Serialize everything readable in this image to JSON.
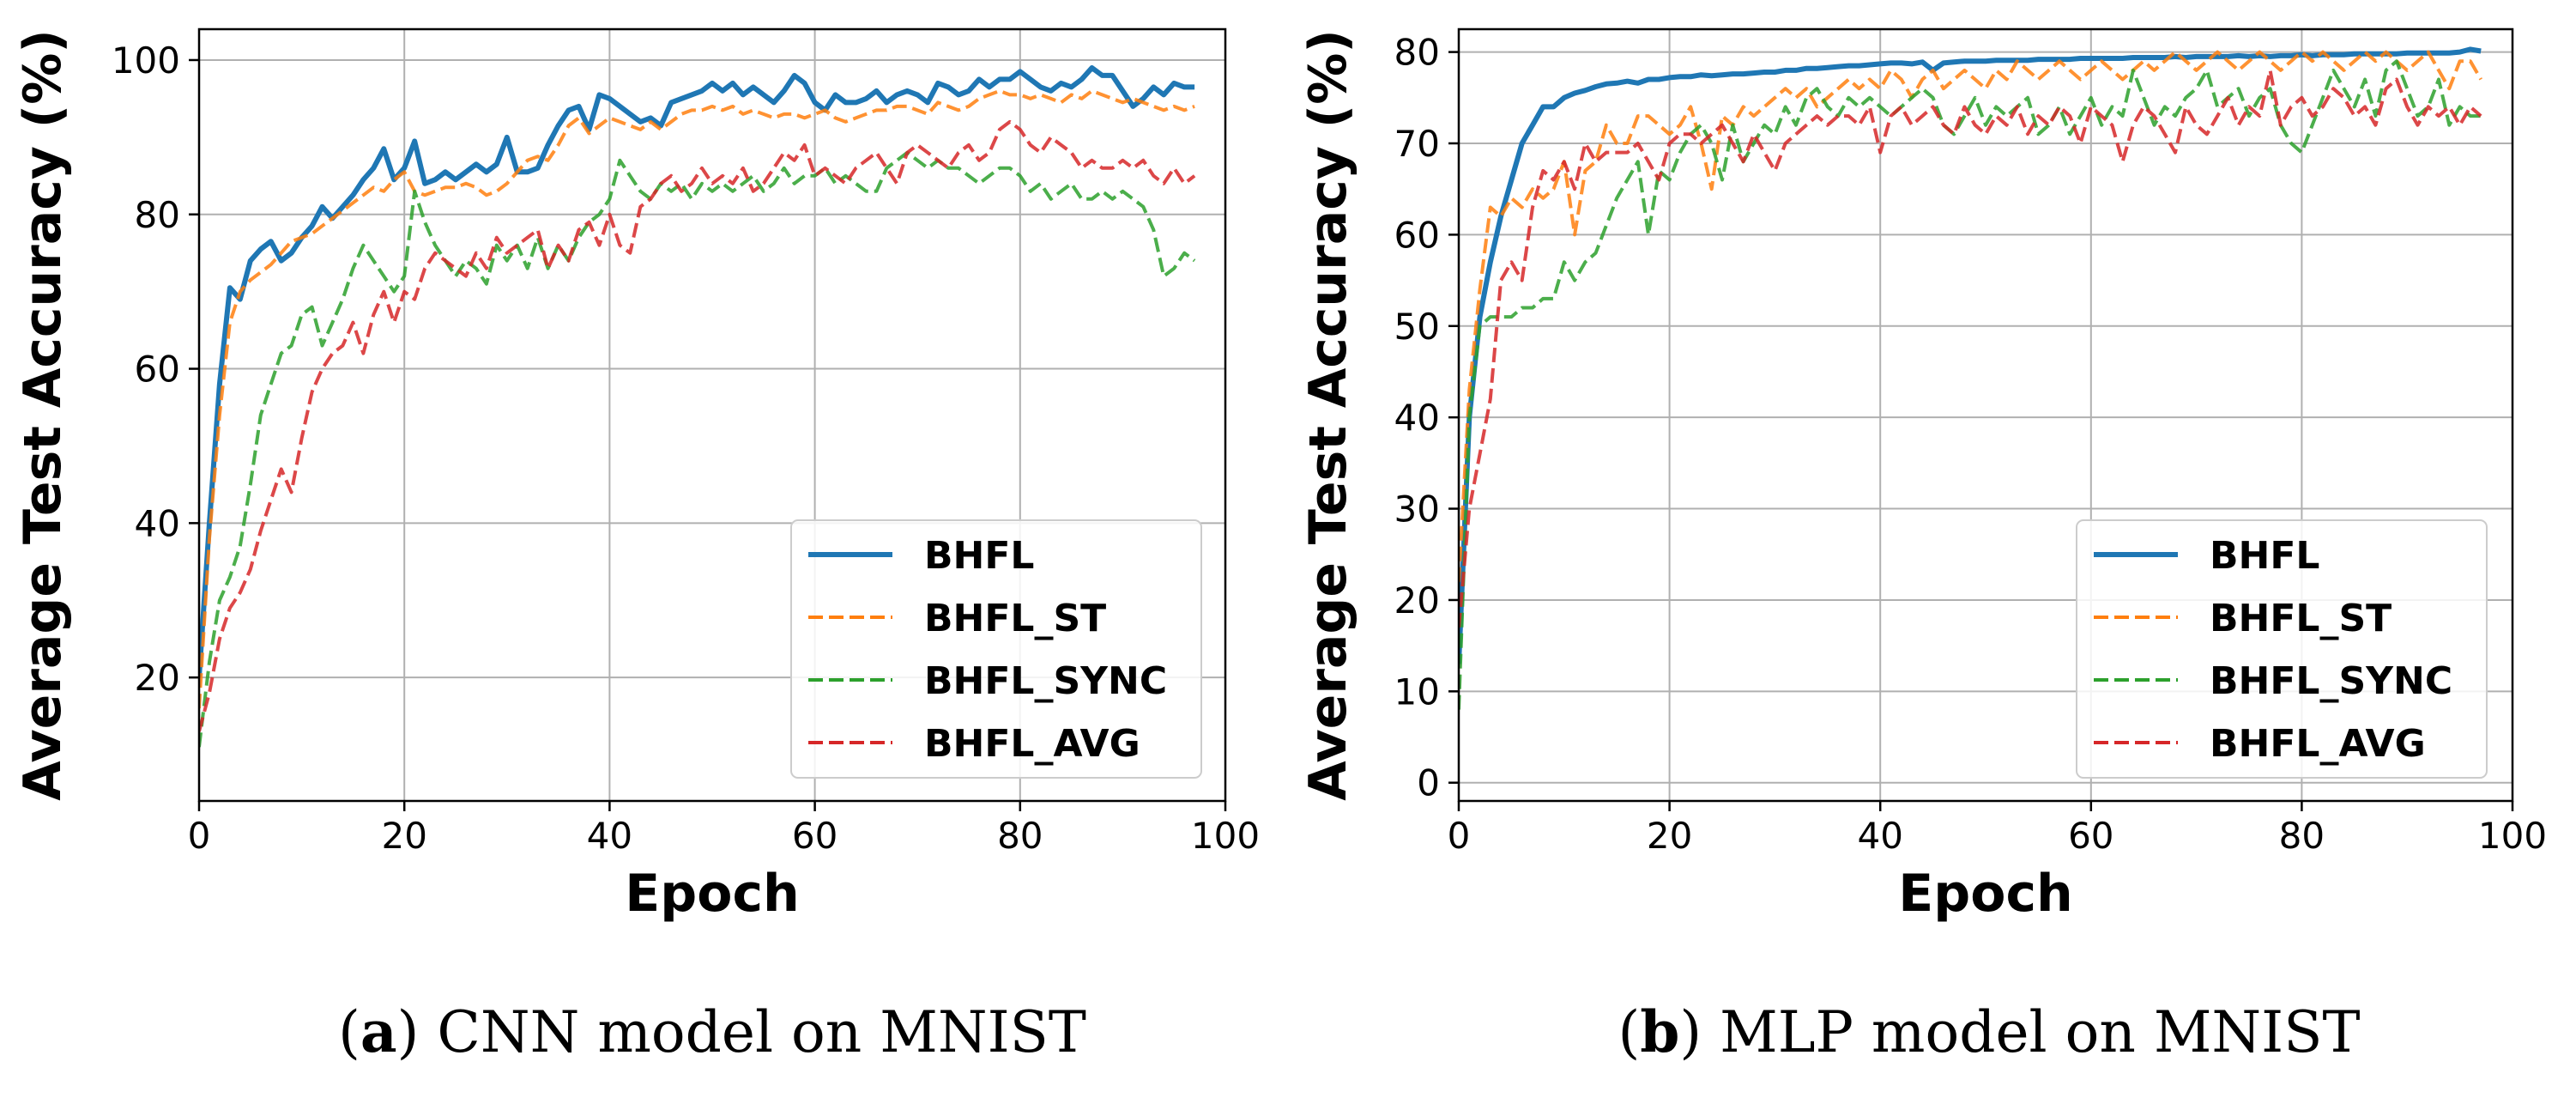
{
  "colors": {
    "BHFL": "#1f77b4",
    "BHFL_ST": "#ff7f0e",
    "BHFL_SYNC": "#2ca02c",
    "BHFL_AVG": "#d62728"
  },
  "chart_data": [
    {
      "type": "line",
      "caption": {
        "letter": "a",
        "text": "CNN model on MNIST"
      },
      "xlabel": "Epoch",
      "ylabel": "Average Test Accuracy (%)",
      "xlim": [
        0,
        100
      ],
      "ylim": [
        4,
        104
      ],
      "xticks": [
        0,
        20,
        40,
        60,
        80,
        100
      ],
      "yticks": [
        20,
        40,
        60,
        80,
        100
      ],
      "grid": true,
      "legend_position": "lower-right",
      "x": [
        0,
        1,
        2,
        3,
        4,
        5,
        6,
        7,
        8,
        9,
        10,
        11,
        12,
        13,
        14,
        15,
        16,
        17,
        18,
        19,
        20,
        21,
        22,
        23,
        24,
        25,
        26,
        27,
        28,
        29,
        30,
        31,
        32,
        33,
        34,
        35,
        36,
        37,
        38,
        39,
        40,
        41,
        42,
        43,
        44,
        45,
        46,
        47,
        48,
        49,
        50,
        51,
        52,
        53,
        54,
        55,
        56,
        57,
        58,
        59,
        60,
        61,
        62,
        63,
        64,
        65,
        66,
        67,
        68,
        69,
        70,
        71,
        72,
        73,
        74,
        75,
        76,
        77,
        78,
        79,
        80,
        81,
        82,
        83,
        84,
        85,
        86,
        87,
        88,
        89,
        90,
        91,
        92,
        93,
        94,
        95,
        96,
        97
      ],
      "series": [
        {
          "name": "BHFL",
          "style": "solid",
          "values": [
            20,
            40,
            58,
            70.5,
            69,
            74,
            75.5,
            76.5,
            74,
            75,
            77,
            78.5,
            81,
            79.5,
            81,
            82.5,
            84.5,
            86,
            88.5,
            84.5,
            86,
            89.5,
            84,
            84.5,
            85.5,
            84.5,
            85.5,
            86.5,
            85.5,
            86.5,
            90,
            85.5,
            85.5,
            86,
            89,
            91.5,
            93.5,
            94,
            91,
            95.5,
            95,
            94,
            93,
            92,
            92.5,
            91.5,
            94.5,
            95,
            95.5,
            96,
            97,
            96,
            97,
            95.5,
            96.5,
            95.5,
            94.5,
            96,
            98,
            97,
            94.5,
            93.5,
            95.5,
            94.5,
            94.5,
            95,
            96,
            94.5,
            95.5,
            96,
            95.5,
            94.5,
            97,
            96.5,
            95.5,
            96,
            97.5,
            96.5,
            97.5,
            97.5,
            98.5,
            97.5,
            96.5,
            96,
            97,
            96.5,
            97.5,
            99,
            98,
            98,
            96,
            94,
            95,
            96.5,
            95.5,
            97,
            96.5,
            96.5
          ]
        },
        {
          "name": "BHFL_ST",
          "style": "dashed",
          "values": [
            16,
            38,
            54,
            66,
            70,
            71.5,
            72.5,
            73.5,
            75,
            76.5,
            77,
            77.5,
            78.5,
            79.5,
            80.5,
            81.5,
            82.5,
            83.5,
            83,
            84.5,
            85.5,
            83,
            82.5,
            83,
            83.5,
            83.5,
            84,
            83.5,
            82.5,
            83,
            84,
            85.5,
            87,
            87.5,
            87,
            89,
            91.5,
            92.5,
            90.5,
            91.5,
            92.5,
            92,
            91.5,
            91,
            92,
            91,
            92,
            93,
            93.5,
            93.5,
            94,
            93.5,
            94,
            93,
            93.5,
            93,
            92.5,
            93,
            93,
            92.5,
            93,
            93.5,
            92.5,
            92,
            92.5,
            93,
            93.5,
            93.5,
            94,
            94,
            93.5,
            93,
            94.5,
            94,
            93.5,
            94,
            95,
            95.5,
            96,
            95.5,
            95.5,
            95,
            95.5,
            95,
            94.5,
            95.5,
            95,
            96,
            95.5,
            95,
            94.5,
            95,
            94.5,
            94,
            93.5,
            94,
            93.5,
            94
          ]
        },
        {
          "name": "BHFL_SYNC",
          "style": "dashed",
          "values": [
            11,
            22,
            30,
            33,
            37,
            45,
            54,
            58,
            62,
            63,
            67,
            68,
            63,
            66,
            69,
            73,
            76,
            74,
            72,
            70,
            72,
            83,
            79,
            76,
            74,
            72,
            74,
            73,
            71,
            76,
            74,
            76,
            73,
            77,
            73,
            76,
            74,
            77,
            79,
            80,
            82,
            87,
            85,
            83,
            82,
            84,
            83,
            84,
            82,
            84,
            83,
            84,
            83,
            84,
            85,
            83,
            84,
            86,
            84,
            85,
            85,
            86,
            84,
            85,
            84,
            83,
            83,
            86,
            87,
            88,
            87,
            86,
            87,
            86,
            86,
            85,
            84,
            85,
            86,
            86,
            85,
            83,
            84,
            82,
            83,
            84,
            82,
            82,
            83,
            82,
            83,
            82,
            81,
            78,
            72,
            73,
            75,
            74
          ]
        },
        {
          "name": "BHFL_AVG",
          "style": "dashed",
          "values": [
            13,
            18,
            25,
            29,
            31,
            34,
            39,
            43,
            47,
            44,
            51,
            57,
            60,
            62,
            63,
            66,
            62,
            67,
            70,
            66,
            70,
            69,
            73,
            75,
            74,
            73,
            72,
            75,
            73,
            77,
            75,
            76,
            77,
            78,
            73,
            76,
            74,
            78,
            79,
            76,
            80,
            76,
            75,
            81,
            82,
            84,
            85,
            83,
            84,
            86,
            84,
            85,
            84,
            86,
            83,
            84,
            86,
            88,
            87,
            89,
            85,
            86,
            85,
            84,
            86,
            87,
            88,
            86,
            84,
            88,
            89,
            88,
            87,
            86,
            88,
            89,
            87,
            88,
            91,
            92,
            91,
            89,
            88,
            90,
            89,
            88,
            86,
            87,
            86,
            86,
            87,
            86,
            87,
            85,
            84,
            86,
            84,
            85
          ]
        }
      ]
    },
    {
      "type": "line",
      "caption": {
        "letter": "b",
        "text": "MLP model on MNIST"
      },
      "xlabel": "Epoch",
      "ylabel": "Average Test Accuracy (%)",
      "xlim": [
        0,
        100
      ],
      "ylim": [
        -2,
        82.5
      ],
      "xticks": [
        0,
        20,
        40,
        60,
        80,
        100
      ],
      "yticks": [
        0,
        10,
        20,
        30,
        40,
        50,
        60,
        70,
        80
      ],
      "grid": true,
      "legend_position": "lower-right",
      "x": [
        0,
        1,
        2,
        3,
        4,
        5,
        6,
        7,
        8,
        9,
        10,
        11,
        12,
        13,
        14,
        15,
        16,
        17,
        18,
        19,
        20,
        21,
        22,
        23,
        24,
        25,
        26,
        27,
        28,
        29,
        30,
        31,
        32,
        33,
        34,
        35,
        36,
        37,
        38,
        39,
        40,
        41,
        42,
        43,
        44,
        45,
        46,
        47,
        48,
        49,
        50,
        51,
        52,
        53,
        54,
        55,
        56,
        57,
        58,
        59,
        60,
        61,
        62,
        63,
        64,
        65,
        66,
        67,
        68,
        69,
        70,
        71,
        72,
        73,
        74,
        75,
        76,
        77,
        78,
        79,
        80,
        81,
        82,
        83,
        84,
        85,
        86,
        87,
        88,
        89,
        90,
        91,
        92,
        93,
        94,
        95,
        96,
        97
      ],
      "series": [
        {
          "name": "BHFL",
          "style": "solid",
          "values": [
            13,
            40,
            51,
            57,
            62,
            66,
            70,
            72,
            74,
            74,
            75,
            75.5,
            75.8,
            76.2,
            76.5,
            76.6,
            76.8,
            76.6,
            77,
            77,
            77.2,
            77.3,
            77.3,
            77.5,
            77.4,
            77.5,
            77.6,
            77.6,
            77.7,
            77.8,
            77.8,
            78,
            78,
            78.2,
            78.2,
            78.3,
            78.4,
            78.5,
            78.5,
            78.6,
            78.7,
            78.8,
            78.8,
            78.7,
            78.9,
            78,
            78.8,
            78.9,
            79,
            79,
            79,
            79.1,
            79.1,
            79.1,
            79.1,
            79.2,
            79.2,
            79.2,
            79.2,
            79.3,
            79.3,
            79.3,
            79.3,
            79.3,
            79.4,
            79.4,
            79.4,
            79.4,
            79.5,
            79.4,
            79.5,
            79.5,
            79.5,
            79.5,
            79.6,
            79.5,
            79.6,
            79.5,
            79.6,
            79.6,
            79.7,
            79.6,
            79.7,
            79.7,
            79.7,
            79.8,
            79.8,
            79.8,
            79.8,
            79.8,
            79.9,
            79.9,
            79.9,
            79.9,
            79.9,
            80,
            80.3,
            80.1
          ]
        },
        {
          "name": "BHFL_ST",
          "style": "dashed",
          "values": [
            22,
            43,
            54,
            63,
            62,
            64,
            63,
            65,
            64,
            65,
            68,
            60,
            67,
            68,
            72,
            70,
            70,
            73,
            73,
            72,
            71,
            72,
            74,
            70,
            65,
            73,
            72,
            74,
            73,
            74,
            75,
            76,
            75,
            76,
            74,
            75,
            76,
            77,
            76,
            77,
            76,
            78,
            77,
            75,
            77,
            78,
            76,
            77,
            78,
            77,
            76,
            78,
            77,
            79,
            78,
            77,
            78,
            79,
            78,
            77,
            78,
            79,
            78,
            77,
            78,
            79,
            78,
            79,
            80,
            79,
            78,
            79,
            80,
            79,
            78,
            79,
            80,
            79,
            78,
            79,
            80,
            79,
            80,
            79,
            78,
            79,
            80,
            79,
            80,
            79,
            78,
            79,
            80,
            78,
            76,
            79,
            79,
            77
          ]
        },
        {
          "name": "BHFL_SYNC",
          "style": "dashed",
          "values": [
            8,
            40,
            50,
            51,
            51,
            51,
            52,
            52,
            53,
            53,
            57,
            55,
            57,
            58,
            61,
            64,
            66,
            68,
            60,
            67,
            66,
            69,
            71,
            72,
            70,
            66,
            72,
            68,
            70,
            72,
            71,
            74,
            72,
            75,
            76,
            74,
            73,
            75,
            74,
            75,
            74,
            73,
            74,
            75,
            76,
            75,
            72,
            71,
            73,
            75,
            72,
            74,
            73,
            74,
            75,
            71,
            72,
            74,
            71,
            73,
            75,
            72,
            74,
            73,
            78,
            75,
            72,
            74,
            73,
            75,
            76,
            78,
            74,
            75,
            76,
            73,
            75,
            76,
            72,
            70,
            69,
            72,
            75,
            78,
            76,
            74,
            77,
            73,
            78,
            79,
            76,
            73,
            74,
            77,
            72,
            74,
            73,
            73
          ]
        },
        {
          "name": "BHFL_AVG",
          "style": "dashed",
          "values": [
            17,
            30,
            36,
            42,
            55,
            57,
            55,
            63,
            67,
            66,
            68,
            65,
            70,
            68,
            69,
            69,
            69,
            70,
            68,
            66,
            70,
            71,
            71,
            70,
            71,
            72,
            70,
            68,
            71,
            69,
            67,
            70,
            71,
            72,
            73,
            72,
            73,
            73,
            72,
            74,
            69,
            73,
            74,
            72,
            73,
            74,
            72,
            71,
            74,
            72,
            71,
            73,
            72,
            74,
            71,
            73,
            72,
            74,
            73,
            70,
            74,
            73,
            72,
            68,
            72,
            74,
            73,
            71,
            69,
            74,
            72,
            71,
            73,
            75,
            72,
            74,
            73,
            78,
            72,
            74,
            75,
            73,
            74,
            76,
            75,
            73,
            74,
            72,
            76,
            77,
            74,
            72,
            74,
            73,
            74,
            72,
            74,
            73
          ]
        }
      ]
    }
  ]
}
